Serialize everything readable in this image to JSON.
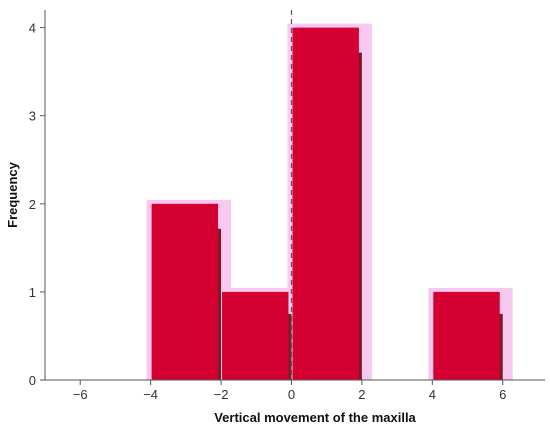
{
  "chart_data": {
    "type": "bar",
    "title": "",
    "xlabel": "Vertical movement of the maxilla",
    "ylabel": "Frequency",
    "xlim": [
      -7,
      7.2
    ],
    "ylim": [
      0,
      4.2
    ],
    "x_ticks": [
      -6,
      -4,
      -2,
      0,
      2,
      4,
      6
    ],
    "y_ticks": [
      0,
      1,
      2,
      3,
      4
    ],
    "x_tick_labels": [
      "−6",
      "−4",
      "−2",
      "0",
      "2",
      "4",
      "6"
    ],
    "y_tick_labels": [
      "0",
      "1",
      "2",
      "3",
      "4"
    ],
    "bins": [
      {
        "x0": -4,
        "x1": -2,
        "value": 2
      },
      {
        "x0": -2,
        "x1": 0,
        "value": 1
      },
      {
        "x0": 0,
        "x1": 2,
        "value": 4
      },
      {
        "x0": 4,
        "x1": 6,
        "value": 1
      }
    ],
    "reference_line_x": 0,
    "grid": false,
    "colors": {
      "bar": "#d50032",
      "bar_shadow": "#7a1c28",
      "highlight": "#f7c8f0",
      "reference_line": "#555555",
      "axis": "#555555"
    }
  }
}
